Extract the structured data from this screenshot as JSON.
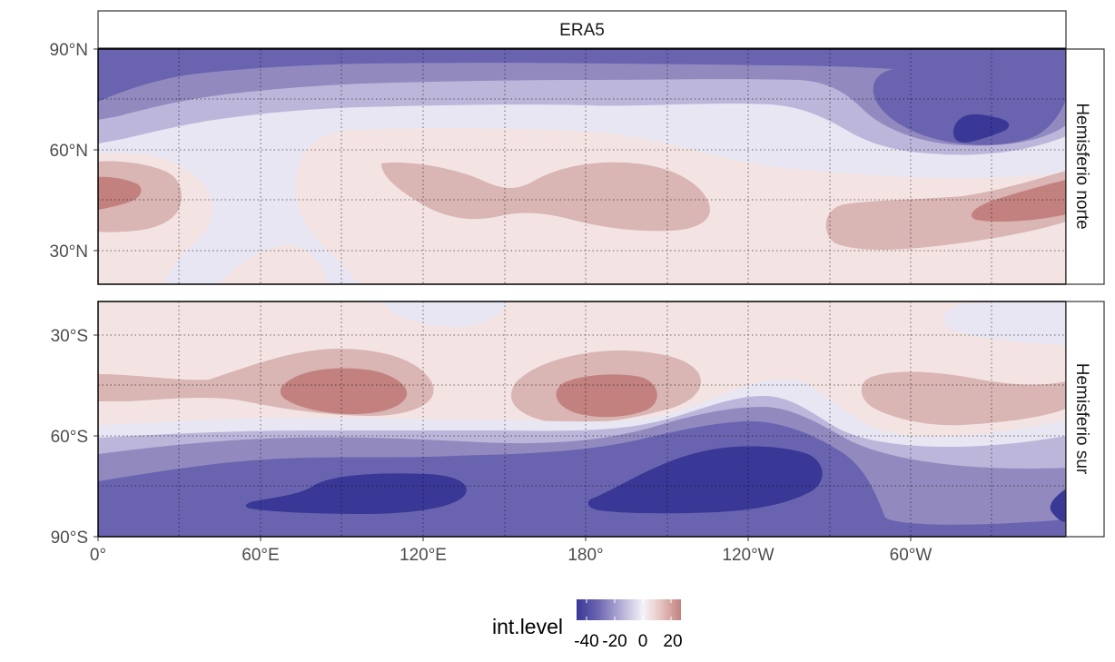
{
  "chart_data": {
    "type": "heatmap",
    "title": "",
    "xlabel": "",
    "ylabel": "",
    "facet_title": "ERA5",
    "x_ticks": [
      "0°",
      "60°E",
      "120°E",
      "180°",
      "120°W",
      "60°W"
    ],
    "x_range_deg_east": [
      0,
      357.5
    ],
    "grid": true,
    "legend": {
      "title": "int.level",
      "position": "bottom",
      "ticks": [
        -40,
        -20,
        0,
        20
      ],
      "range": [
        -50,
        25
      ],
      "colors": [
        "#3a3896",
        "#6a64b0",
        "#928abf",
        "#bcb6da",
        "#e7e6f2",
        "#f3e4e3",
        "#d9b5b4",
        "#c2817e"
      ]
    },
    "panels": [
      {
        "name": "Hemisferio norte",
        "lat_range": [
          20,
          90
        ],
        "y_ticks": [
          "30°N",
          "60°N",
          "90°N"
        ],
        "y_tick_values": [
          30,
          60,
          90
        ]
      },
      {
        "name": "Hemisferio sur",
        "lat_range": [
          -90,
          -20
        ],
        "y_ticks": [
          "30°S",
          "60°S",
          "90°S"
        ],
        "y_tick_values": [
          -30,
          -60,
          -90
        ]
      }
    ],
    "contour_levels": [
      -40,
      -30,
      -20,
      -10,
      0,
      10,
      20
    ]
  }
}
